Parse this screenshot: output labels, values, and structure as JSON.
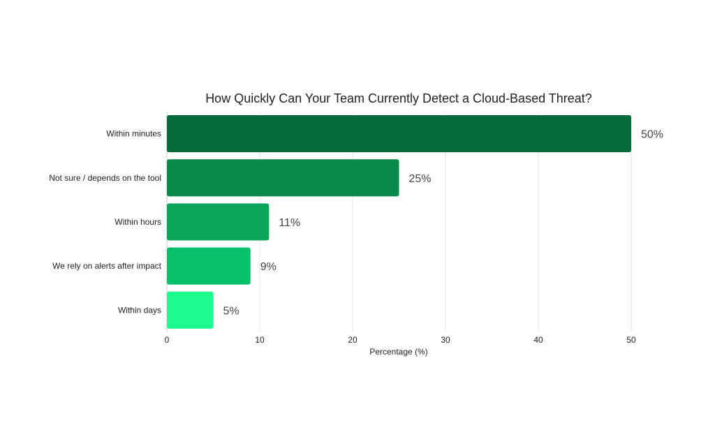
{
  "chart_data": {
    "type": "bar",
    "orientation": "horizontal",
    "title": "How Quickly Can Your Team Currently Detect a Cloud-Based Threat?",
    "xlabel": "Percentage (%)",
    "ylabel": "",
    "xlim": [
      0,
      50
    ],
    "xticks": [
      0,
      10,
      20,
      30,
      40,
      50
    ],
    "grid": true,
    "legend": "none",
    "categories": [
      "Within minutes",
      "Not sure / depends on the tool",
      "Within hours",
      "We rely on alerts after impact",
      "Within days"
    ],
    "values": [
      50,
      25,
      11,
      9,
      5
    ],
    "data_labels": [
      "50%",
      "25%",
      "11%",
      "9%",
      "5%"
    ],
    "colors": [
      "#036b3b",
      "#0a8a4c",
      "#0aa35a",
      "#07c06a",
      "#1cfc8e"
    ]
  }
}
